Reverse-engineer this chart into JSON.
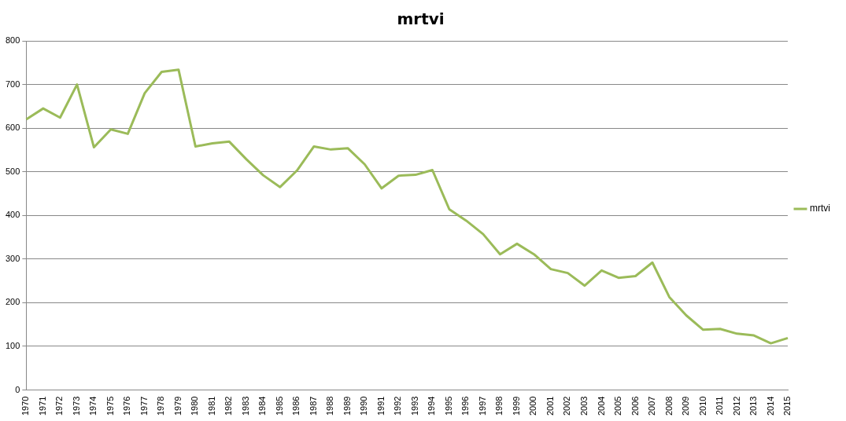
{
  "chart_data": {
    "type": "line",
    "title": "mrtvi",
    "categories": [
      "1970",
      "1971",
      "1972",
      "1973",
      "1974",
      "1975",
      "1976",
      "1977",
      "1978",
      "1979",
      "1980",
      "1981",
      "1982",
      "1983",
      "1984",
      "1985",
      "1986",
      "1987",
      "1988",
      "1989",
      "1990",
      "1991",
      "1992",
      "1993",
      "1994",
      "1995",
      "1996",
      "1997",
      "1998",
      "1999",
      "2000",
      "2001",
      "2002",
      "2003",
      "2004",
      "2005",
      "2006",
      "2007",
      "2008",
      "2009",
      "2010",
      "2011",
      "2012",
      "2013",
      "2014",
      "2015"
    ],
    "series": [
      {
        "name": "mrtvi",
        "color": "#9bbb59",
        "values": [
          620,
          645,
          624,
          700,
          556,
          597,
          587,
          680,
          729,
          734,
          558,
          565,
          569,
          529,
          492,
          465,
          503,
          558,
          551,
          554,
          517,
          462,
          491,
          493,
          504,
          414,
          388,
          357,
          311,
          335,
          311,
          277,
          268,
          239,
          274,
          257,
          261,
          292,
          213,
          171,
          138,
          140,
          129,
          125,
          107,
          119
        ]
      }
    ],
    "ylim": [
      0,
      800
    ],
    "yticks": [
      0,
      100,
      200,
      300,
      400,
      500,
      600,
      700,
      800
    ],
    "grid": "y",
    "legend": "right",
    "marker": "none",
    "line_style": "solid"
  }
}
